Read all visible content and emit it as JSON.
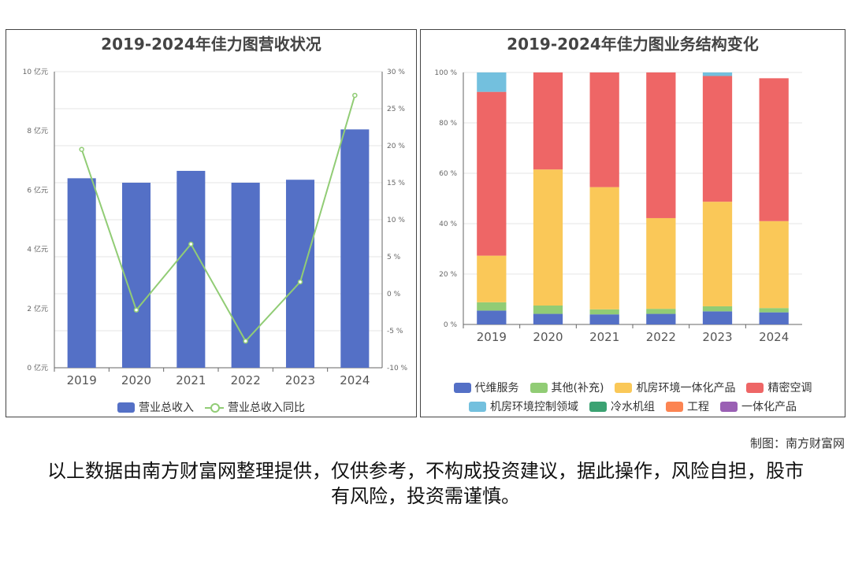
{
  "left_chart": {
    "title": "2019-2024年佳力图营收状况",
    "y_left_ticks": [
      "0 亿元",
      "2 亿元",
      "4 亿元",
      "6 亿元",
      "8 亿元",
      "10 亿元"
    ],
    "y_right_ticks": [
      "-10 %",
      "-5 %",
      "0 %",
      "5 %",
      "10 %",
      "15 %",
      "20 %",
      "25 %",
      "30 %"
    ],
    "legend": [
      "营业总收入",
      "营业总收入同比"
    ],
    "colors": {
      "bar": "#5470c6",
      "line": "#91cc75"
    }
  },
  "right_chart": {
    "title": "2019-2024年佳力图业务结构变化",
    "y_ticks": [
      "0 %",
      "20 %",
      "40 %",
      "60 %",
      "80 %",
      "100 %"
    ],
    "legend": [
      "代维服务",
      "其他(补充)",
      "机房环境一体化产品",
      "精密空调",
      "机房环境控制领域",
      "冷水机组",
      "工程",
      "一体化产品"
    ],
    "legend_colors": [
      "#5470c6",
      "#91cc75",
      "#fac858",
      "#ee6666",
      "#73c0de",
      "#3ba272",
      "#fc8452",
      "#9a60b4"
    ]
  },
  "credit": "制图：南方财富网",
  "disclaimer": "以上数据由南方财富网整理提供，仅供参考，不构成投资建议，据此操作，风险自担，股市有风险，投资需谨慎。",
  "chart_data": [
    {
      "type": "bar",
      "title": "2019-2024年佳力图营收状况",
      "categories": [
        "2019",
        "2020",
        "2021",
        "2022",
        "2023",
        "2024"
      ],
      "series": [
        {
          "name": "营业总收入",
          "type": "bar",
          "axis": "left",
          "unit": "亿元",
          "values": [
            6.4,
            6.25,
            6.65,
            6.25,
            6.35,
            8.05
          ]
        },
        {
          "name": "营业总收入同比",
          "type": "line",
          "axis": "right",
          "unit": "%",
          "values": [
            19.5,
            -2.2,
            6.7,
            -6.4,
            1.6,
            26.8
          ]
        }
      ],
      "ylim_left": [
        0,
        10
      ],
      "ylim_right": [
        -10,
        30
      ],
      "legend_position": "bottom",
      "grid": true
    },
    {
      "type": "bar",
      "stacked": true,
      "title": "2019-2024年佳力图业务结构变化",
      "categories": [
        "2019",
        "2020",
        "2021",
        "2022",
        "2023",
        "2024"
      ],
      "unit": "%",
      "series": [
        {
          "name": "代维服务",
          "values": [
            5.5,
            4.2,
            4.0,
            4.2,
            5.2,
            4.8
          ]
        },
        {
          "name": "其他(补充)",
          "values": [
            3.3,
            3.3,
            2.0,
            2.0,
            2.0,
            1.7
          ]
        },
        {
          "name": "机房环境一体化产品",
          "values": [
            18.5,
            54.0,
            48.5,
            36.0,
            41.5,
            34.5
          ]
        },
        {
          "name": "精密空调",
          "values": [
            65.0,
            38.5,
            45.5,
            57.8,
            49.9,
            56.7
          ]
        },
        {
          "name": "机房环境控制领域",
          "values": [
            7.7,
            0,
            0,
            0,
            1.4,
            0
          ]
        },
        {
          "name": "冷水机组",
          "values": [
            0,
            0,
            0,
            0,
            0,
            0
          ]
        },
        {
          "name": "工程",
          "values": [
            0,
            0,
            0,
            0,
            0,
            0
          ]
        },
        {
          "name": "一体化产品",
          "values": [
            0,
            0,
            0,
            0,
            0,
            0
          ]
        }
      ],
      "ylim": [
        0,
        100
      ],
      "legend_position": "bottom",
      "grid": true
    }
  ]
}
